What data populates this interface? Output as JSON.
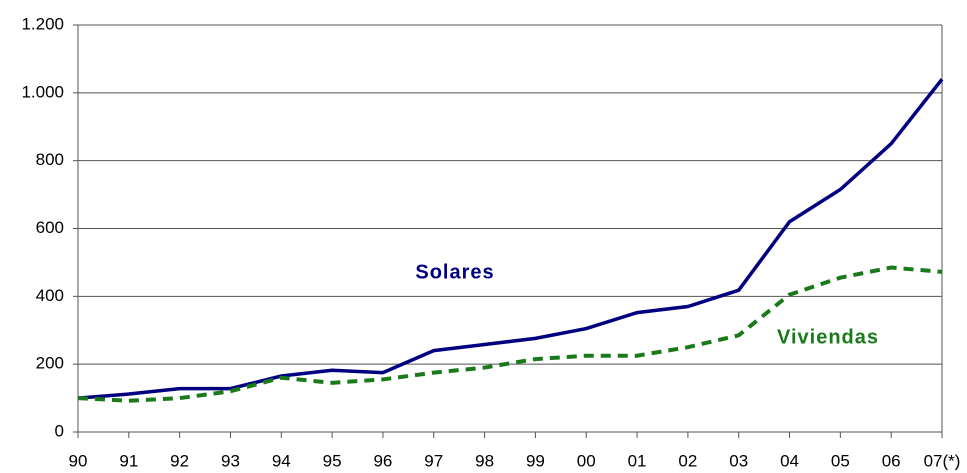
{
  "chart_data": {
    "type": "line",
    "categories": [
      "90",
      "91",
      "92",
      "93",
      "94",
      "95",
      "96",
      "97",
      "98",
      "99",
      "00",
      "01",
      "02",
      "03",
      "04",
      "05",
      "06",
      "07(*)"
    ],
    "series": [
      {
        "name": "Solares",
        "color": "#000080",
        "dash": false,
        "values": [
          100,
          112,
          128,
          128,
          165,
          182,
          175,
          240,
          258,
          276,
          305,
          352,
          370,
          418,
          620,
          715,
          850,
          1040
        ]
      },
      {
        "name": "Viviendas",
        "color": "#1a7a1a",
        "dash": true,
        "values": [
          100,
          92,
          100,
          120,
          160,
          145,
          155,
          175,
          190,
          215,
          225,
          225,
          250,
          285,
          405,
          455,
          485,
          472
        ]
      }
    ],
    "ylim": [
      0,
      1200
    ],
    "yticks": [
      0,
      200,
      400,
      600,
      800,
      {
        "value": 1000,
        "label": "1.000"
      },
      {
        "value": 1200,
        "label": "1.200"
      }
    ],
    "grid": true
  }
}
